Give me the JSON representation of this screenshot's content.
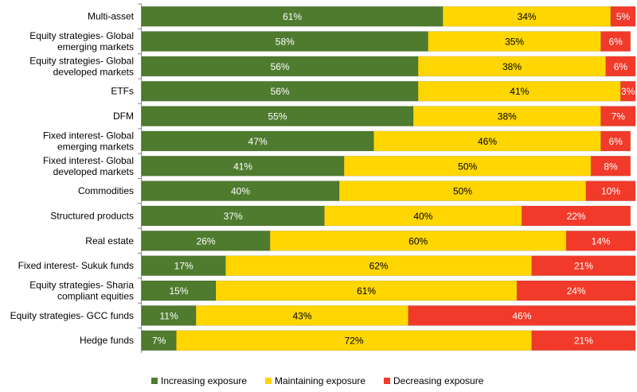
{
  "chart_data": {
    "type": "bar",
    "orientation": "horizontal",
    "stacked": true,
    "title": "",
    "xlabel": "",
    "ylabel": "",
    "xlim": [
      0,
      100
    ],
    "grid": false,
    "legend_position": "bottom",
    "categories": [
      "Multi-asset",
      "Equity strategies- Global emerging markets",
      "Equity strategies- Global developed markets",
      "ETFs",
      "DFM",
      "Fixed interest- Global emerging markets",
      "Fixed interest- Global developed markets",
      "Commodities",
      "Structured products",
      "Real estate",
      "Fixed interest- Sukuk funds",
      "Equity strategies- Sharia compliant equities",
      "Equity strategies- GCC funds",
      "Hedge funds"
    ],
    "category_lines": [
      [
        "Multi-asset"
      ],
      [
        "Equity strategies- Global",
        "emerging markets"
      ],
      [
        "Equity strategies- Global",
        "developed markets"
      ],
      [
        "ETFs"
      ],
      [
        "DFM"
      ],
      [
        "Fixed interest- Global",
        "emerging markets"
      ],
      [
        "Fixed interest- Global",
        "developed markets"
      ],
      [
        "Commodities"
      ],
      [
        "Structured products"
      ],
      [
        "Real estate"
      ],
      [
        "Fixed interest- Sukuk funds"
      ],
      [
        "Equity strategies- Sharia",
        "compliant equities"
      ],
      [
        "Equity strategies- GCC funds"
      ],
      [
        "Hedge funds"
      ]
    ],
    "series": [
      {
        "name": "Increasing exposure",
        "color": "#4f7b2f",
        "label_color": "#ffffff",
        "values": [
          61,
          58,
          56,
          56,
          55,
          47,
          41,
          40,
          37,
          26,
          17,
          15,
          11,
          7
        ]
      },
      {
        "name": "Maintaining exposure",
        "color": "#ffd600",
        "label_color": "#000000",
        "values": [
          34,
          35,
          38,
          41,
          38,
          46,
          50,
          50,
          40,
          60,
          62,
          61,
          43,
          72
        ]
      },
      {
        "name": "Decreasing exposure",
        "color": "#f23a2a",
        "label_color": "#ffffff",
        "values": [
          5,
          6,
          6,
          3,
          7,
          6,
          8,
          10,
          22,
          14,
          21,
          24,
          46,
          21
        ]
      }
    ],
    "value_suffix": "%"
  }
}
